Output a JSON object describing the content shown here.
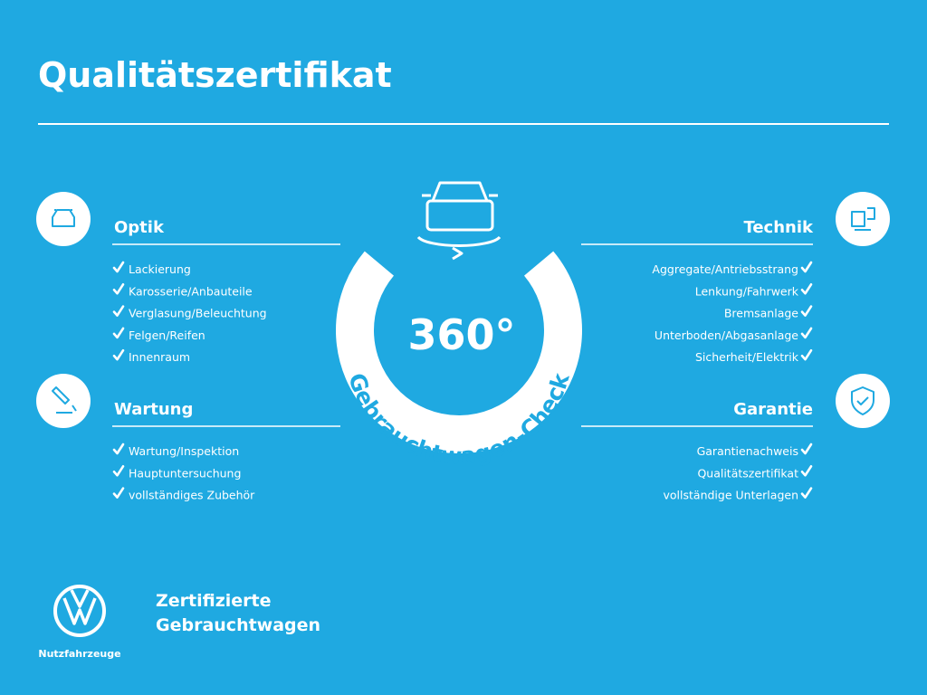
{
  "header": {
    "title": "Qualitätszertifikat"
  },
  "sections": [
    {
      "title": "Optik",
      "items": [
        "Lackierung",
        "Karosserie/Anbauteile",
        "Verglasung/Beleuchtung",
        "Felgen/Reifen",
        "Innenraum"
      ]
    },
    {
      "title": "Wartung",
      "items": [
        "Wartung/Inspektion",
        "Hauptuntersuchung",
        "vollständiges Zubehör"
      ]
    },
    {
      "title": "Technik",
      "items": [
        "Aggregate/Antriebsstrang",
        "Lenkung/Fahrwerk",
        "Bremsanlage",
        "Unterboden/Abgasanlage",
        "Sicherheit/Elektrik"
      ]
    },
    {
      "title": "Garantie",
      "items": [
        "Garantienachweis",
        "Qualitätszertifikat",
        "vollständige Unterlagen"
      ]
    }
  ],
  "badge": {
    "number": "360°",
    "label": "Gebrauchtwagen-Check"
  },
  "footer": {
    "brand": "Nutzfahrzeuge",
    "tagline": [
      "Zertifizierte",
      "Gebrauchtwagen"
    ]
  }
}
